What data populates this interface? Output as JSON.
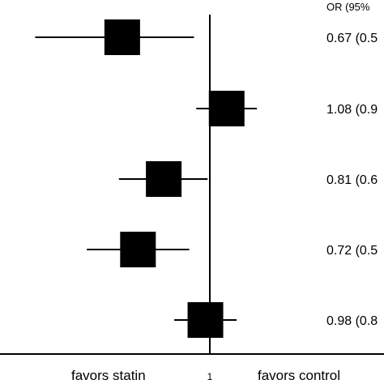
{
  "chart_data": {
    "type": "forest",
    "header": "OR (95%",
    "reference_value": 1,
    "x_tick_label": "1",
    "left_label": "favors statin",
    "right_label": "favors control",
    "rows": [
      {
        "estimate": 0.67,
        "ci_low": 0.45,
        "ci_high": 0.93,
        "label": "0.67 (0.5"
      },
      {
        "estimate": 1.08,
        "ci_low": 0.94,
        "ci_high": 1.24,
        "label": "1.08 (0.9"
      },
      {
        "estimate": 0.81,
        "ci_low": 0.66,
        "ci_high": 0.99,
        "label": "0.81 (0.6"
      },
      {
        "estimate": 0.72,
        "ci_low": 0.57,
        "ci_high": 0.91,
        "label": "0.72 (0.5"
      },
      {
        "estimate": 0.98,
        "ci_low": 0.85,
        "ci_high": 1.13,
        "label": "0.98 (0.8"
      }
    ]
  }
}
